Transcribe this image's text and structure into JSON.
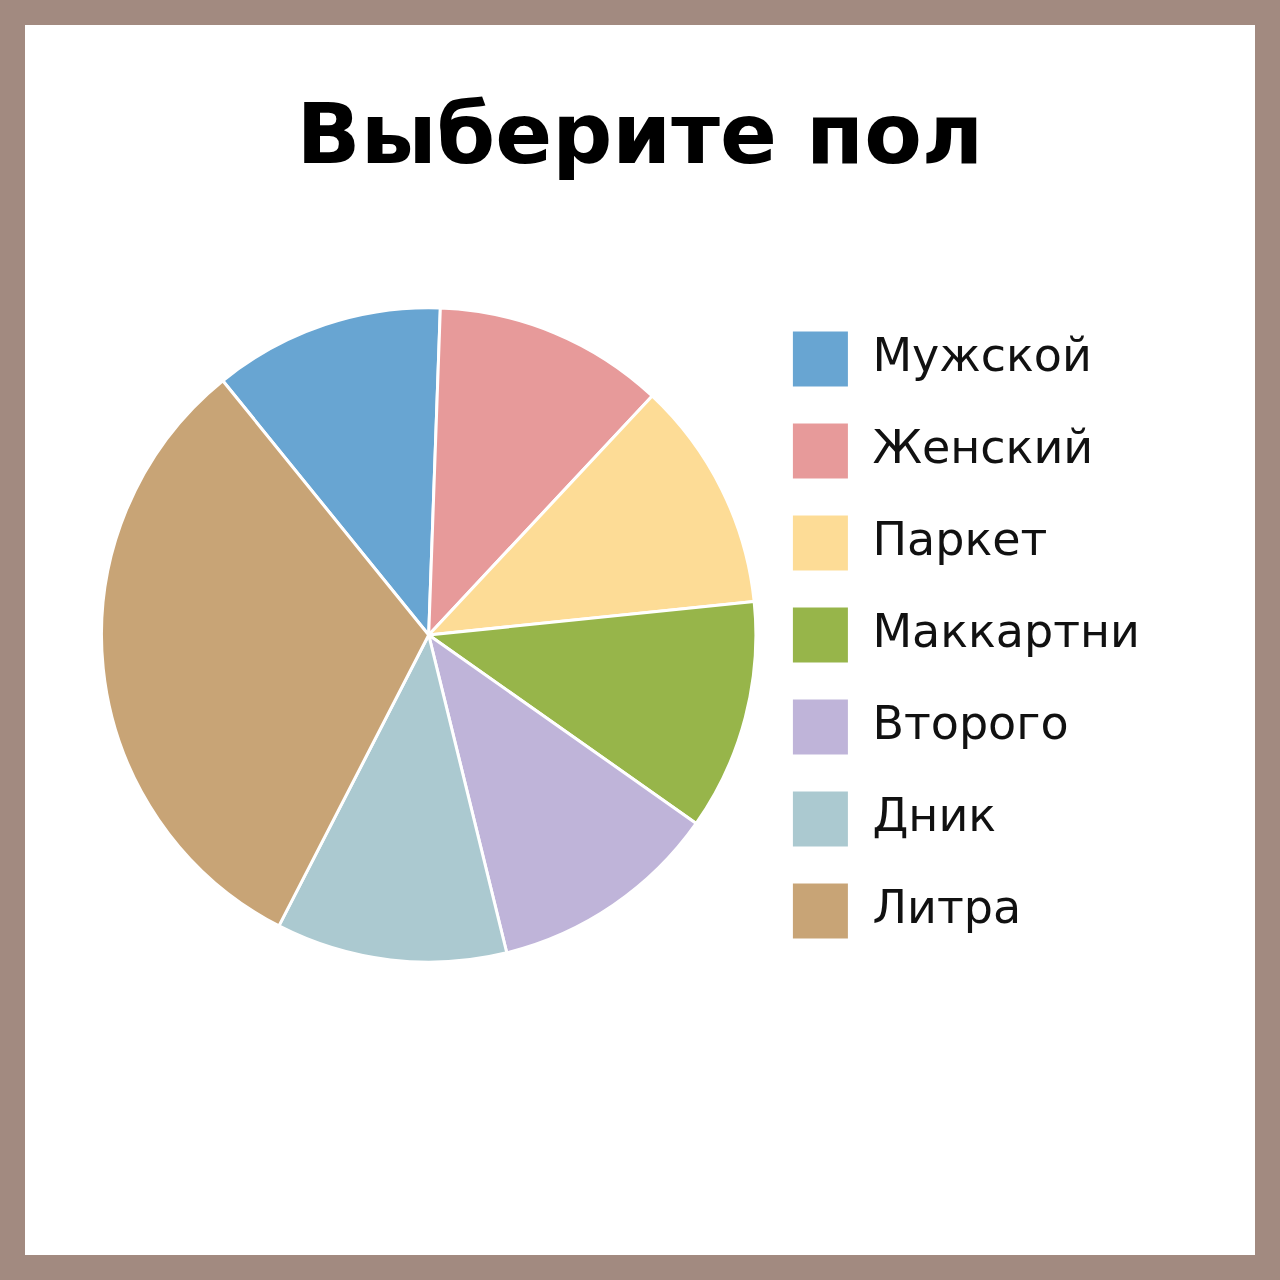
{
  "chart_data": {
    "type": "pie",
    "title": "Выберите пол",
    "categories": [
      "Мужской",
      "Женский",
      "Паркет",
      "Маккартни",
      "Второго",
      "Дник",
      "Литра"
    ],
    "values": [
      11.4,
      11.4,
      11.4,
      11.4,
      11.4,
      11.4,
      31.6
    ],
    "colors": [
      "#68a5d2",
      "#e79a9a",
      "#fddc96",
      "#97b54a",
      "#bfb4d9",
      "#abc9d0",
      "#c8a476"
    ],
    "legend": "right"
  }
}
